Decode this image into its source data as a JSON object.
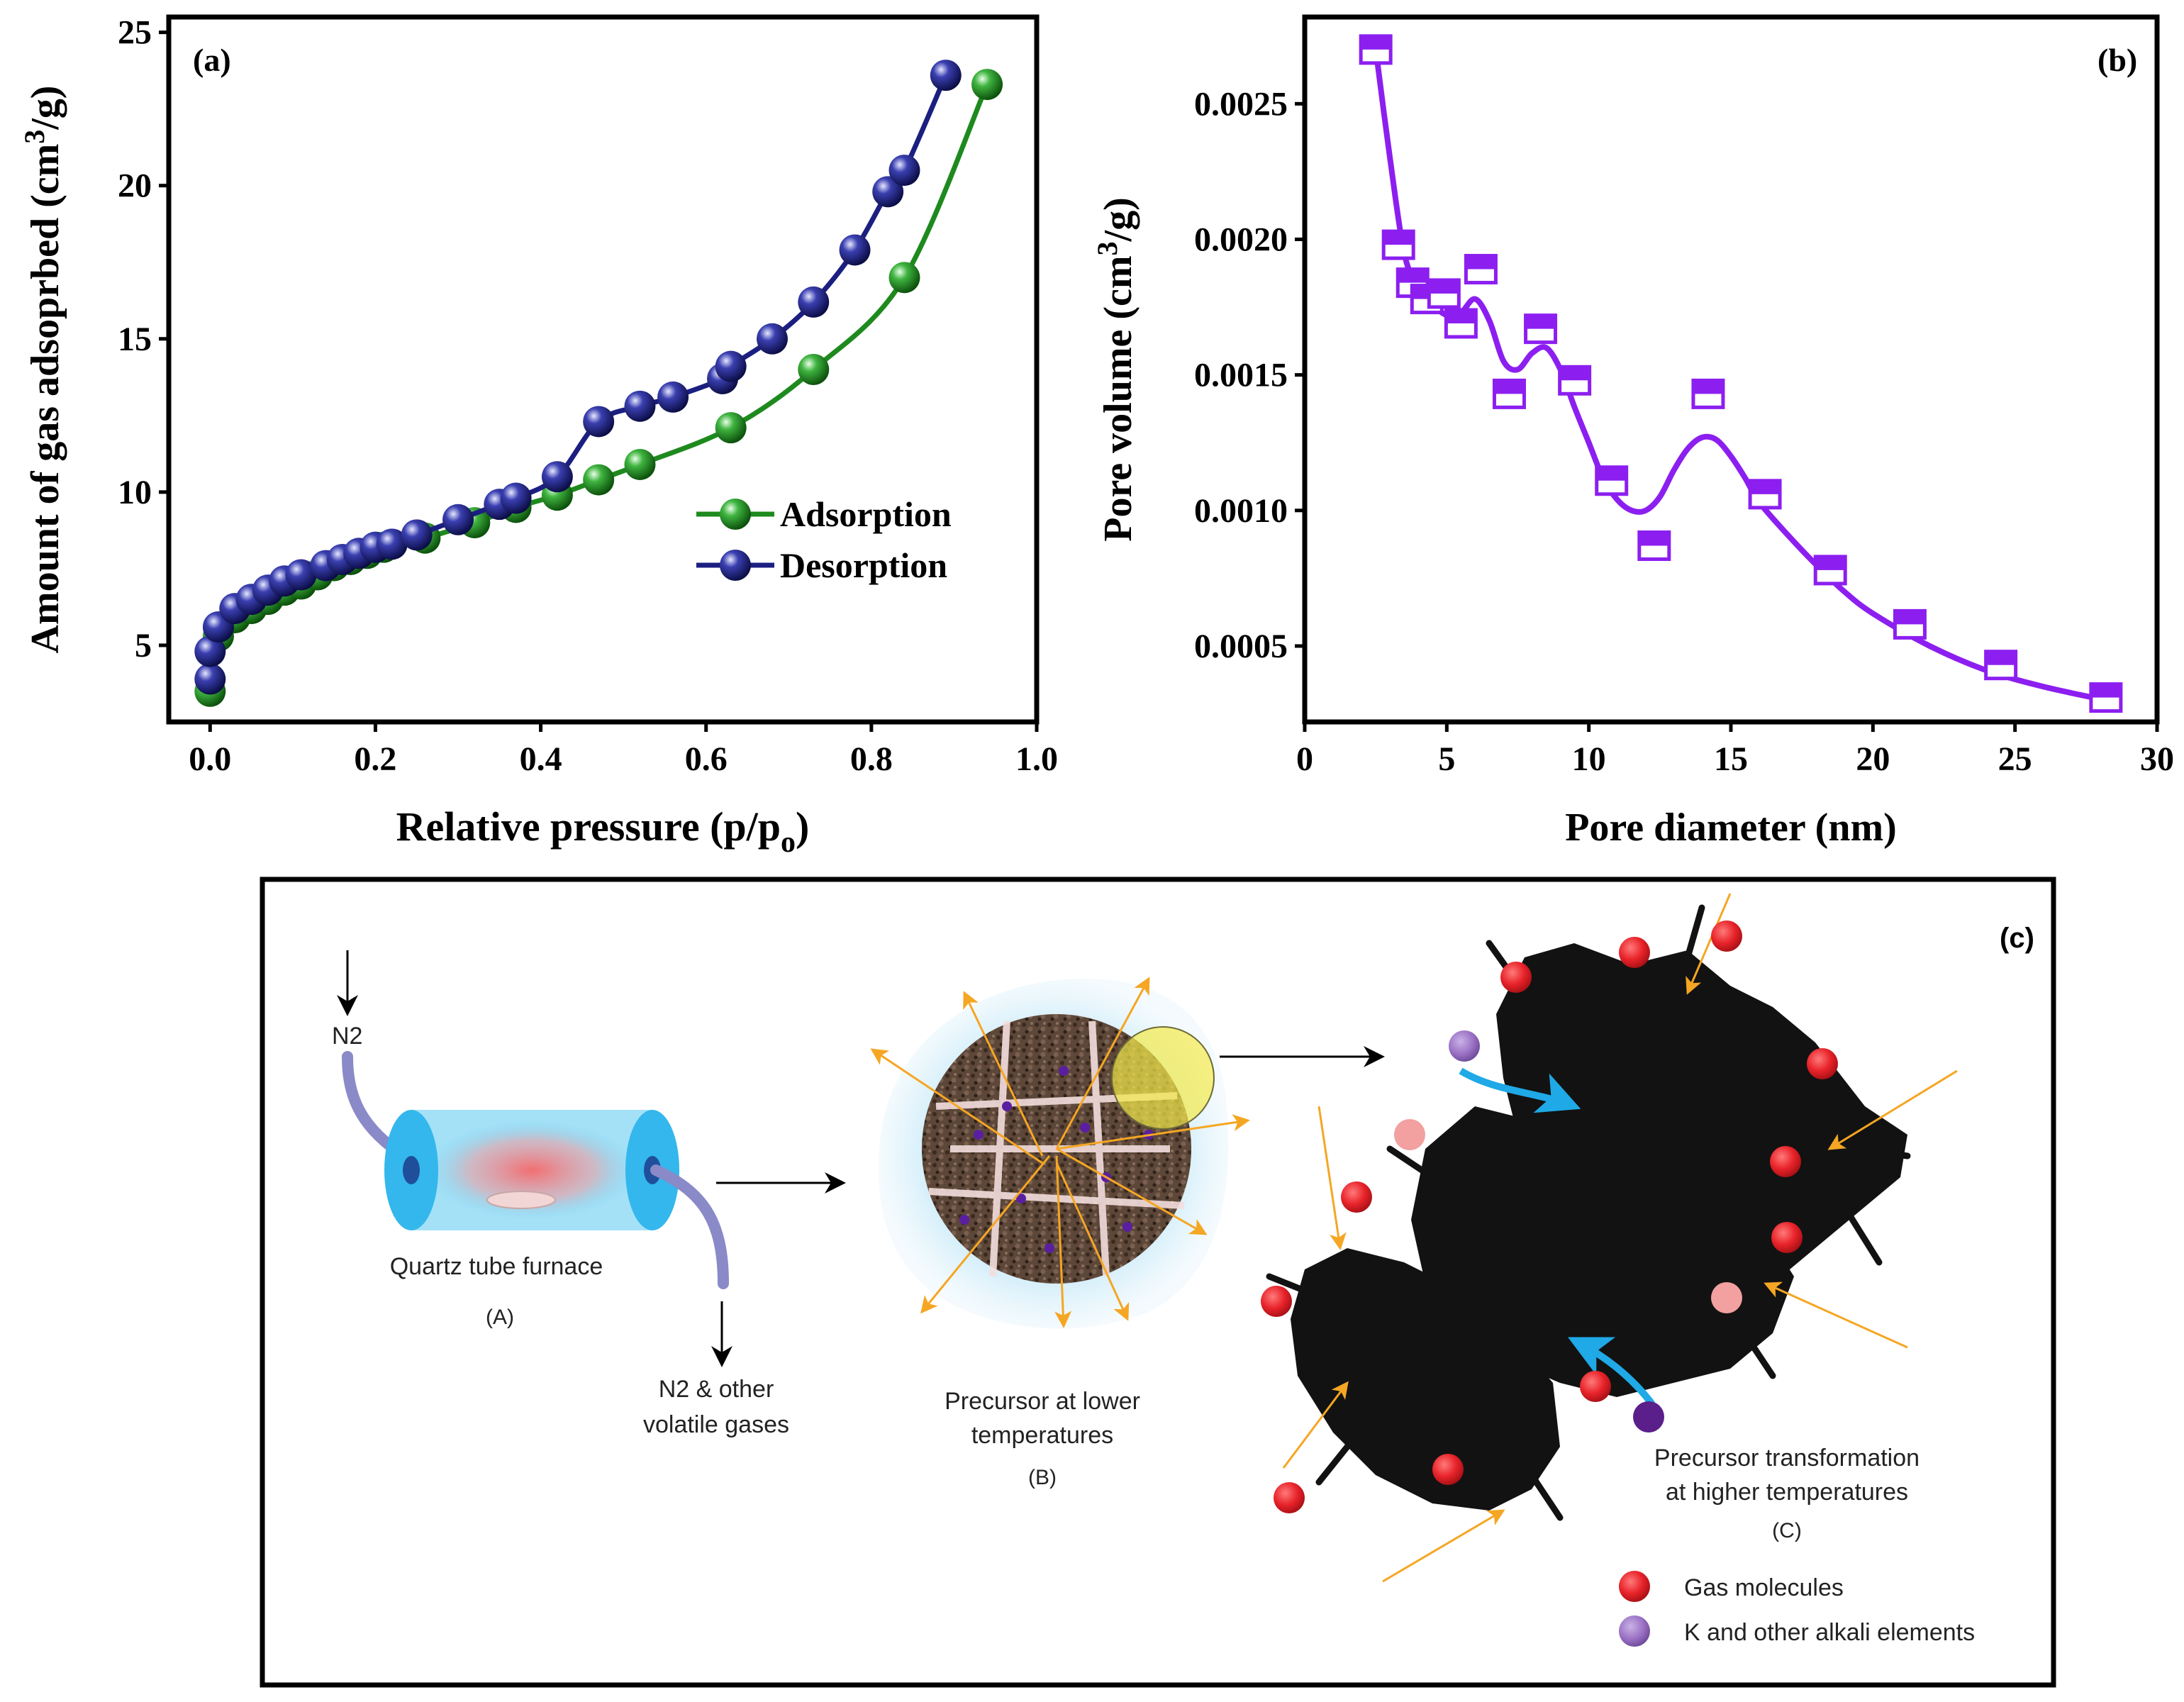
{
  "chart_data": [
    {
      "panel": "(a)",
      "type": "line",
      "title": "",
      "xlabel": "Relative pressure (p/p",
      "xlabel_sub": "o",
      "xlabel_end": ")",
      "ylabel": "Amount of gas adsoprbed (cm",
      "ylabel_sup": "3",
      "ylabel_end": "/g)",
      "xlim": [
        -0.05,
        1.0
      ],
      "ylim": [
        2.5,
        25.5
      ],
      "xticks": [
        0.0,
        0.2,
        0.4,
        0.6,
        0.8,
        1.0
      ],
      "xtick_labels": [
        "0.0",
        "0.2",
        "0.4",
        "0.6",
        "0.8",
        "1.0"
      ],
      "yticks": [
        5,
        10,
        15,
        20,
        25
      ],
      "ytick_labels": [
        "5",
        "10",
        "15",
        "20",
        "25"
      ],
      "legend": "center-right",
      "series": [
        {
          "name": "Adsorption",
          "color": "#1e8a1e",
          "x": [
            0.0,
            0.01,
            0.03,
            0.05,
            0.07,
            0.09,
            0.11,
            0.13,
            0.15,
            0.17,
            0.19,
            0.21,
            0.26,
            0.32,
            0.37,
            0.42,
            0.47,
            0.52,
            0.63,
            0.73,
            0.84,
            0.94
          ],
          "y": [
            3.5,
            5.3,
            5.9,
            6.2,
            6.5,
            6.8,
            7.0,
            7.3,
            7.6,
            7.8,
            8.0,
            8.2,
            8.5,
            9.0,
            9.5,
            9.9,
            10.4,
            10.9,
            12.1,
            14.0,
            17.0,
            23.3
          ]
        },
        {
          "name": "Desorption",
          "color": "#1b1f80",
          "x": [
            0.0,
            0.0,
            0.01,
            0.03,
            0.05,
            0.07,
            0.09,
            0.11,
            0.14,
            0.16,
            0.18,
            0.2,
            0.22,
            0.25,
            0.3,
            0.35,
            0.37,
            0.42,
            0.47,
            0.52,
            0.56,
            0.62,
            0.63,
            0.68,
            0.73,
            0.78,
            0.82,
            0.84,
            0.89
          ],
          "y": [
            3.9,
            4.8,
            5.6,
            6.2,
            6.5,
            6.8,
            7.1,
            7.3,
            7.6,
            7.8,
            8.0,
            8.2,
            8.3,
            8.6,
            9.1,
            9.6,
            9.8,
            10.5,
            12.3,
            12.8,
            13.1,
            13.7,
            14.1,
            15.0,
            16.2,
            17.9,
            19.8,
            20.5,
            23.6
          ]
        }
      ]
    },
    {
      "panel": "(b)",
      "type": "line",
      "title": "",
      "xlabel": "Pore diameter (nm)",
      "ylabel": "Pore volume (cm",
      "ylabel_sup": "3",
      "ylabel_end": "/g)",
      "xlim": [
        0,
        30
      ],
      "ylim": [
        0.00022,
        0.00282
      ],
      "xticks": [
        0,
        5,
        10,
        15,
        20,
        25,
        30
      ],
      "xtick_labels": [
        "0",
        "5",
        "10",
        "15",
        "20",
        "25",
        "30"
      ],
      "yticks": [
        0.0005,
        0.001,
        0.0015,
        0.002,
        0.0025
      ],
      "ytick_labels": [
        "0.0005",
        "0.0010",
        "0.0015",
        "0.0020",
        "0.0025"
      ],
      "series": [
        {
          "name": "Pore volume",
          "color": "#8c1ff0",
          "x": [
            2.5,
            3.3,
            3.8,
            4.3,
            4.9,
            5.5,
            6.2,
            7.2,
            8.3,
            9.5,
            10.8,
            12.3,
            14.2,
            16.2,
            18.5,
            21.3,
            24.5,
            28.2
          ],
          "y": [
            0.0027,
            0.00198,
            0.00184,
            0.00178,
            0.0018,
            0.00169,
            0.00189,
            0.00143,
            0.00167,
            0.00148,
            0.00111,
            0.00087,
            0.00143,
            0.00106,
            0.00078,
            0.00058,
            0.00043,
            0.00031
          ]
        }
      ],
      "fit_curve": {
        "x": [
          2.5,
          3.0,
          3.5,
          4.0,
          4.5,
          5.0,
          5.5,
          6.0,
          6.5,
          7.0,
          7.5,
          8.0,
          8.5,
          9.0,
          9.5,
          10.0,
          10.5,
          11.0,
          11.5,
          12.0,
          12.5,
          13.0,
          13.5,
          14.0,
          14.5,
          15.0,
          15.5,
          16.0,
          17.0,
          18.0,
          19.0,
          20.0,
          22.0,
          24.0,
          26.0,
          28.2
        ],
        "y": [
          0.0027,
          0.0023,
          0.00195,
          0.00182,
          0.00176,
          0.00172,
          0.00173,
          0.00178,
          0.0017,
          0.00155,
          0.00152,
          0.00158,
          0.0016,
          0.00152,
          0.00138,
          0.00125,
          0.00112,
          0.00104,
          0.001,
          0.001,
          0.00105,
          0.00115,
          0.00123,
          0.00127,
          0.00126,
          0.0012,
          0.00112,
          0.00103,
          0.00091,
          0.0008,
          0.0007,
          0.00062,
          0.0005,
          0.00041,
          0.00035,
          0.0003
        ]
      }
    }
  ],
  "panel_c": {
    "label": "(c)",
    "n2_in": "N2",
    "furnace_label": "Quartz tube furnace",
    "furnace_id": "(A)",
    "out_label_1": "N2 & other",
    "out_label_2": "volatile gases",
    "precursor_low_1": "Precursor at lower",
    "precursor_low_2": "temperatures",
    "precursor_low_id": "(B)",
    "precursor_high_1": "Precursor transformation",
    "precursor_high_2": "at higher temperatures",
    "precursor_high_id": "(C)",
    "legend_gas": "Gas molecules",
    "legend_alkali": "K and other alkali elements",
    "colors": {
      "gas": "#e8232a",
      "alkali": "#9a70c4",
      "arrow_orange": "#f5a623",
      "arrow_blue": "#1fa9e6",
      "furnace": "#5ac8f0",
      "carbon": "#121212",
      "precursor": "#5a4436"
    }
  }
}
